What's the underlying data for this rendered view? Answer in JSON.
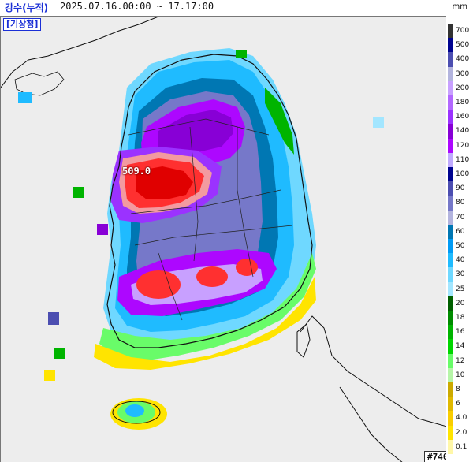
{
  "header": {
    "title": "강수(누적)",
    "time_range": "2025.07.16.00:00 ~ 17.17:00",
    "unit": "mm"
  },
  "map": {
    "agency_label": "[기상청]",
    "max_value_label": "509.0",
    "map_id": "#740"
  },
  "legend": {
    "items": [
      {
        "label": "700",
        "color": "#333333"
      },
      {
        "label": "500",
        "color": "#000390"
      },
      {
        "label": "400",
        "color": "#4c4eb1"
      },
      {
        "label": "300",
        "color": "#b3b4de"
      },
      {
        "label": "200",
        "color": "#c8a0ff"
      },
      {
        "label": "180",
        "color": "#b368ff"
      },
      {
        "label": "160",
        "color": "#9b32ff"
      },
      {
        "label": "140",
        "color": "#8800d6"
      },
      {
        "label": "120",
        "color": "#ad07ff"
      },
      {
        "label": "110",
        "color": "#c0aaff"
      },
      {
        "label": "100",
        "color": "#000390"
      },
      {
        "label": "90",
        "color": "#4c4eb1"
      },
      {
        "label": "80",
        "color": "#7678c9"
      },
      {
        "label": "70",
        "color": "#b3b4de"
      },
      {
        "label": "60",
        "color": "#0077b3"
      },
      {
        "label": "50",
        "color": "#009bf5"
      },
      {
        "label": "40",
        "color": "#1fbbff"
      },
      {
        "label": "30",
        "color": "#6fd8ff"
      },
      {
        "label": "25",
        "color": "#a3e6ff"
      },
      {
        "label": "20",
        "color": "#006000"
      },
      {
        "label": "18",
        "color": "#008c00"
      },
      {
        "label": "16",
        "color": "#00b400"
      },
      {
        "label": "14",
        "color": "#00d600"
      },
      {
        "label": "12",
        "color": "#69fc69"
      },
      {
        "label": "10",
        "color": "#b6f5a8"
      },
      {
        "label": "8",
        "color": "#ccaa00"
      },
      {
        "label": "6",
        "color": "#e0b900"
      },
      {
        "label": "4.0",
        "color": "#f9cd00"
      },
      {
        "label": "2.0",
        "color": "#ffe400"
      },
      {
        "label": "0.1",
        "color": "#fff7a8"
      }
    ]
  }
}
